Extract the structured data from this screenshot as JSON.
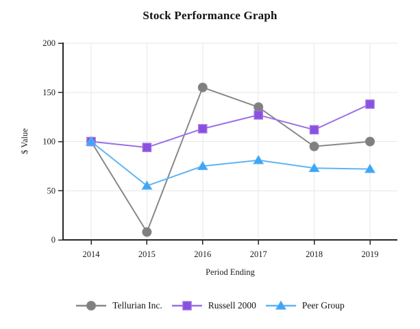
{
  "chart_data": {
    "type": "line",
    "title": "Stock Performance Graph",
    "xlabel": "Period Ending",
    "ylabel": "$ Value",
    "categories": [
      "2014",
      "2015",
      "2016",
      "2017",
      "2018",
      "2019"
    ],
    "series": [
      {
        "name": "Tellurian Inc.",
        "marker": "circle",
        "marker_color": "#808080",
        "line_color": "#878787",
        "values": [
          100,
          8,
          155,
          135,
          95,
          100
        ]
      },
      {
        "name": "Russell 2000",
        "marker": "square",
        "marker_color": "#8A50DF",
        "line_color": "#9B6FE6",
        "values": [
          100,
          94,
          113,
          127,
          112,
          138
        ]
      },
      {
        "name": "Peer Group",
        "marker": "triangle",
        "marker_color": "#3DA6F5",
        "line_color": "#5FB4F2",
        "values": [
          100,
          55,
          75,
          81,
          73,
          72
        ]
      }
    ],
    "ylim": [
      0,
      200
    ],
    "yticks": [
      0,
      50,
      100,
      150,
      200
    ],
    "grid": true,
    "legend_position": "bottom",
    "background_color": "#ffffff",
    "grid_color": "#e7e7e7",
    "axis_color": "#262626"
  }
}
